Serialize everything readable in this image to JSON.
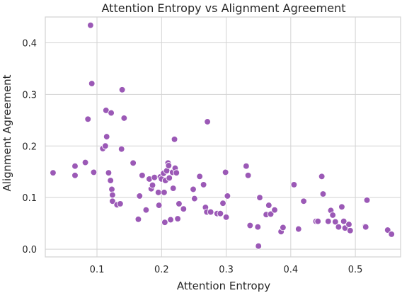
{
  "chart_data": {
    "type": "scatter",
    "title": "Attention Entropy vs Alignment Agreement",
    "xlabel": "Attention Entropy",
    "ylabel": "Alignment Agreement",
    "xlim": [
      0.02,
      0.57
    ],
    "ylim": [
      -0.015,
      0.45
    ],
    "xticks": [
      0.1,
      0.2,
      0.3,
      0.4,
      0.5
    ],
    "xtick_labels": [
      "0.1",
      "0.2",
      "0.3",
      "0.4",
      "0.5"
    ],
    "yticks": [
      0.0,
      0.1,
      0.2,
      0.3,
      0.4
    ],
    "ytick_labels": [
      "0.0",
      "0.1",
      "0.2",
      "0.3",
      "0.4"
    ],
    "grid": true,
    "color": "#9b59b6",
    "points": [
      {
        "x": 0.032,
        "y": 0.148
      },
      {
        "x": 0.066,
        "y": 0.161
      },
      {
        "x": 0.066,
        "y": 0.143
      },
      {
        "x": 0.082,
        "y": 0.168
      },
      {
        "x": 0.086,
        "y": 0.252
      },
      {
        "x": 0.09,
        "y": 0.434
      },
      {
        "x": 0.092,
        "y": 0.321
      },
      {
        "x": 0.095,
        "y": 0.149
      },
      {
        "x": 0.109,
        "y": 0.195
      },
      {
        "x": 0.113,
        "y": 0.2
      },
      {
        "x": 0.114,
        "y": 0.269
      },
      {
        "x": 0.115,
        "y": 0.218
      },
      {
        "x": 0.118,
        "y": 0.148
      },
      {
        "x": 0.121,
        "y": 0.133
      },
      {
        "x": 0.122,
        "y": 0.264
      },
      {
        "x": 0.123,
        "y": 0.116
      },
      {
        "x": 0.124,
        "y": 0.105
      },
      {
        "x": 0.124,
        "y": 0.093
      },
      {
        "x": 0.131,
        "y": 0.086
      },
      {
        "x": 0.136,
        "y": 0.088
      },
      {
        "x": 0.138,
        "y": 0.194
      },
      {
        "x": 0.139,
        "y": 0.309
      },
      {
        "x": 0.142,
        "y": 0.254
      },
      {
        "x": 0.156,
        "y": 0.167
      },
      {
        "x": 0.164,
        "y": 0.058
      },
      {
        "x": 0.166,
        "y": 0.103
      },
      {
        "x": 0.17,
        "y": 0.143
      },
      {
        "x": 0.176,
        "y": 0.076
      },
      {
        "x": 0.181,
        "y": 0.136
      },
      {
        "x": 0.184,
        "y": 0.117
      },
      {
        "x": 0.186,
        "y": 0.124
      },
      {
        "x": 0.189,
        "y": 0.139
      },
      {
        "x": 0.195,
        "y": 0.11
      },
      {
        "x": 0.196,
        "y": 0.085
      },
      {
        "x": 0.198,
        "y": 0.14
      },
      {
        "x": 0.2,
        "y": 0.136
      },
      {
        "x": 0.203,
        "y": 0.147
      },
      {
        "x": 0.204,
        "y": 0.11
      },
      {
        "x": 0.205,
        "y": 0.052
      },
      {
        "x": 0.206,
        "y": 0.133
      },
      {
        "x": 0.208,
        "y": 0.152
      },
      {
        "x": 0.21,
        "y": 0.167
      },
      {
        "x": 0.211,
        "y": 0.162
      },
      {
        "x": 0.212,
        "y": 0.138
      },
      {
        "x": 0.214,
        "y": 0.057
      },
      {
        "x": 0.217,
        "y": 0.149
      },
      {
        "x": 0.218,
        "y": 0.118
      },
      {
        "x": 0.22,
        "y": 0.213
      },
      {
        "x": 0.221,
        "y": 0.157
      },
      {
        "x": 0.223,
        "y": 0.148
      },
      {
        "x": 0.225,
        "y": 0.059
      },
      {
        "x": 0.227,
        "y": 0.088
      },
      {
        "x": 0.234,
        "y": 0.078
      },
      {
        "x": 0.249,
        "y": 0.116
      },
      {
        "x": 0.251,
        "y": 0.098
      },
      {
        "x": 0.259,
        "y": 0.141
      },
      {
        "x": 0.265,
        "y": 0.125
      },
      {
        "x": 0.268,
        "y": 0.081
      },
      {
        "x": 0.27,
        "y": 0.072
      },
      {
        "x": 0.271,
        "y": 0.247
      },
      {
        "x": 0.276,
        "y": 0.072
      },
      {
        "x": 0.286,
        "y": 0.069
      },
      {
        "x": 0.291,
        "y": 0.069
      },
      {
        "x": 0.295,
        "y": 0.089
      },
      {
        "x": 0.299,
        "y": 0.149
      },
      {
        "x": 0.3,
        "y": 0.062
      },
      {
        "x": 0.302,
        "y": 0.103
      },
      {
        "x": 0.331,
        "y": 0.161
      },
      {
        "x": 0.334,
        "y": 0.143
      },
      {
        "x": 0.337,
        "y": 0.046
      },
      {
        "x": 0.349,
        "y": 0.043
      },
      {
        "x": 0.35,
        "y": 0.006
      },
      {
        "x": 0.352,
        "y": 0.1
      },
      {
        "x": 0.362,
        "y": 0.067
      },
      {
        "x": 0.366,
        "y": 0.085
      },
      {
        "x": 0.369,
        "y": 0.068
      },
      {
        "x": 0.375,
        "y": 0.076
      },
      {
        "x": 0.385,
        "y": 0.034
      },
      {
        "x": 0.388,
        "y": 0.042
      },
      {
        "x": 0.405,
        "y": 0.125
      },
      {
        "x": 0.412,
        "y": 0.039
      },
      {
        "x": 0.42,
        "y": 0.093
      },
      {
        "x": 0.439,
        "y": 0.054
      },
      {
        "x": 0.442,
        "y": 0.054
      },
      {
        "x": 0.448,
        "y": 0.141
      },
      {
        "x": 0.45,
        "y": 0.107
      },
      {
        "x": 0.458,
        "y": 0.054
      },
      {
        "x": 0.462,
        "y": 0.075
      },
      {
        "x": 0.465,
        "y": 0.066
      },
      {
        "x": 0.469,
        "y": 0.053
      },
      {
        "x": 0.474,
        "y": 0.043
      },
      {
        "x": 0.479,
        "y": 0.082
      },
      {
        "x": 0.482,
        "y": 0.054
      },
      {
        "x": 0.484,
        "y": 0.041
      },
      {
        "x": 0.49,
        "y": 0.048
      },
      {
        "x": 0.492,
        "y": 0.036
      },
      {
        "x": 0.515,
        "y": 0.044
      },
      {
        "x": 0.516,
        "y": 0.043
      },
      {
        "x": 0.518,
        "y": 0.095
      },
      {
        "x": 0.55,
        "y": 0.037
      },
      {
        "x": 0.556,
        "y": 0.029
      }
    ]
  }
}
